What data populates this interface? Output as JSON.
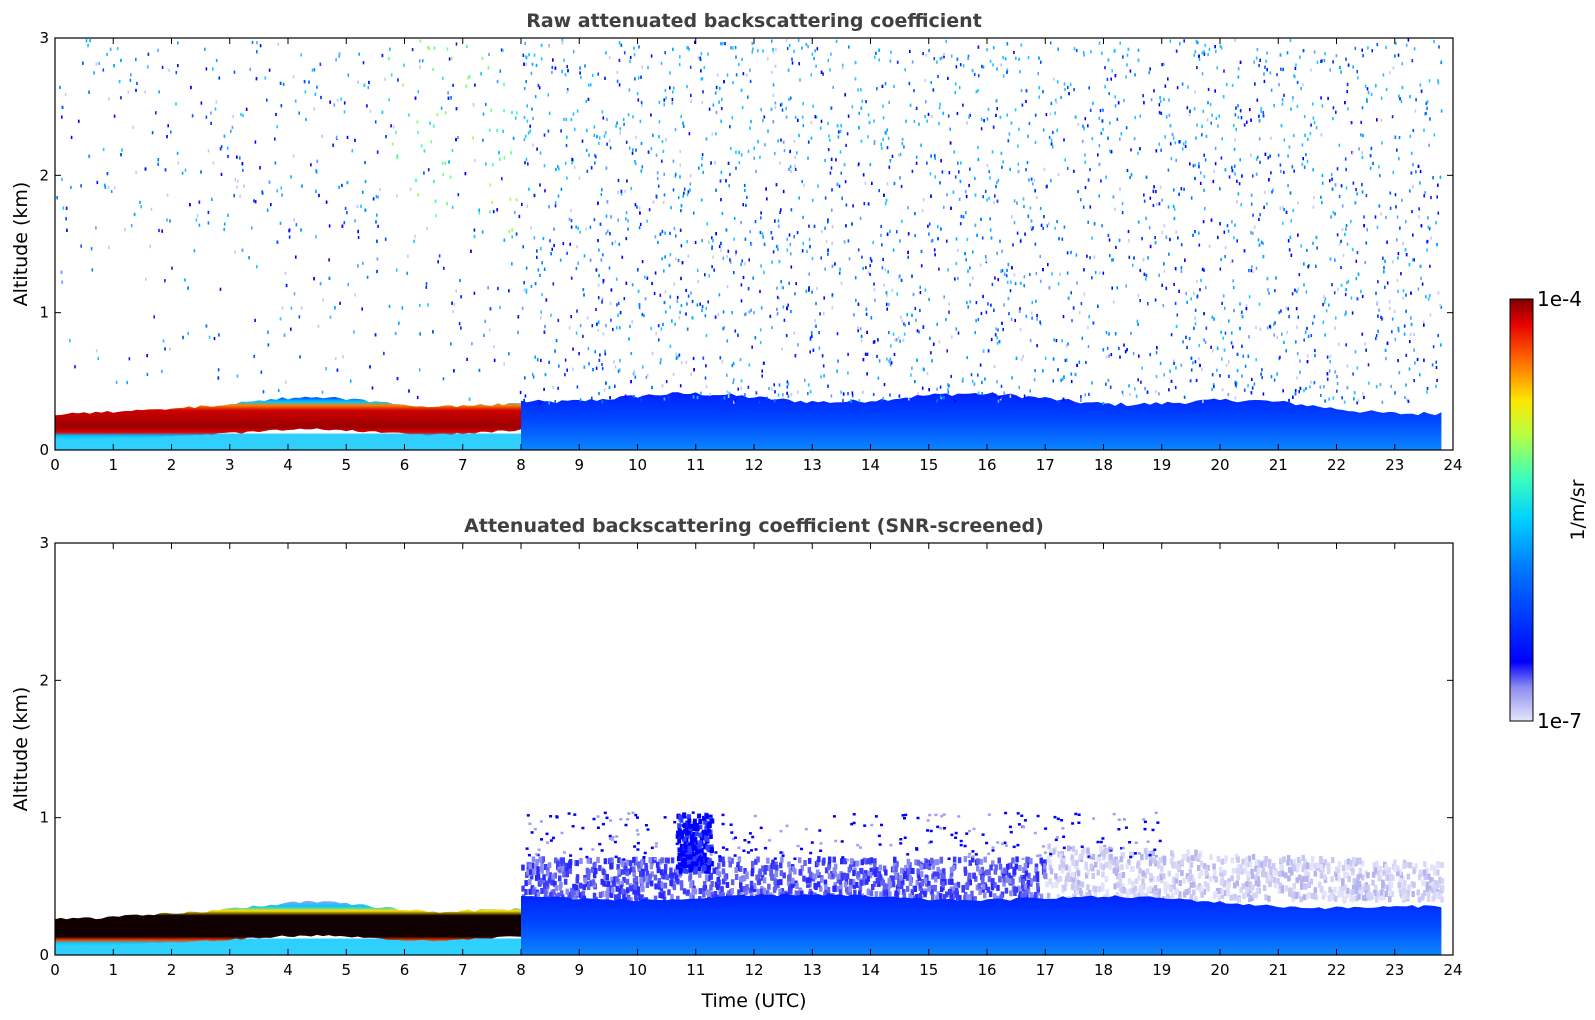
{
  "chart_data": [
    {
      "type": "heatmap",
      "title": "Raw attenuated backscattering coefficient",
      "xlabel": "",
      "ylabel": "Altitude (km)",
      "xlim": [
        0,
        24
      ],
      "ylim": [
        0,
        3
      ],
      "xticks": [
        "0",
        "1",
        "2",
        "3",
        "4",
        "5",
        "6",
        "7",
        "8",
        "9",
        "10",
        "11",
        "12",
        "13",
        "14",
        "15",
        "16",
        "17",
        "18",
        "19",
        "20",
        "21",
        "22",
        "23",
        "24"
      ],
      "yticks": [
        "0",
        "1",
        "2",
        "3"
      ],
      "data_end_time": 23.8,
      "regions": [
        {
          "name": "",
          "x": [
            0,
            8
          ],
          "y": [
            0.1,
            0.3
          ],
          "value": "1e-4"
        },
        {
          "name": "",
          "x": [
            0,
            8
          ],
          "y": [
            0,
            0.1
          ],
          "value": "2e-6"
        },
        {
          "name": "",
          "x": [
            8,
            23.8
          ],
          "y": [
            0,
            0.4
          ],
          "value": "8e-7"
        },
        {
          "name": "",
          "x": [
            8,
            23.8
          ],
          "y": [
            0.4,
            3
          ],
          "value": "noise 3e-7 to 2e-6"
        },
        {
          "name": "",
          "x": [
            6,
            8
          ],
          "y": [
            2,
            3
          ],
          "value": "noise up to 1e-5"
        }
      ]
    },
    {
      "type": "heatmap",
      "title": "Attenuated backscattering coefficient (SNR-screened)",
      "xlabel": "Time (UTC)",
      "ylabel": "Altitude (km)",
      "xlim": [
        0,
        24
      ],
      "ylim": [
        0,
        3
      ],
      "xticks": [
        "0",
        "1",
        "2",
        "3",
        "4",
        "5",
        "6",
        "7",
        "8",
        "9",
        "10",
        "11",
        "12",
        "13",
        "14",
        "15",
        "16",
        "17",
        "18",
        "19",
        "20",
        "21",
        "22",
        "23",
        "24"
      ],
      "yticks": [
        "0",
        "1",
        "2",
        "3"
      ],
      "data_end_time": 23.8,
      "regions": [
        {
          "name": "",
          "x": [
            0,
            8
          ],
          "y": [
            0.12,
            0.28
          ],
          "value": ">1e-4"
        },
        {
          "name": "",
          "x": [
            8,
            23.8
          ],
          "y": [
            0,
            0.45
          ],
          "value": "8e-7"
        },
        {
          "name": "",
          "x": [
            10.6,
            11.3
          ],
          "y": [
            0.6,
            1.05
          ],
          "value": "5e-7"
        },
        {
          "name": "",
          "x": [
            17,
            23.8
          ],
          "y": [
            0.45,
            0.8
          ],
          "value": "2e-7"
        }
      ]
    }
  ],
  "colorbar": {
    "label": "1/m/sr",
    "max_label": "1e-4",
    "min_label": "1e-7",
    "scale": "log",
    "colormap": "jet",
    "range": [
      1e-07,
      0.0001
    ]
  }
}
